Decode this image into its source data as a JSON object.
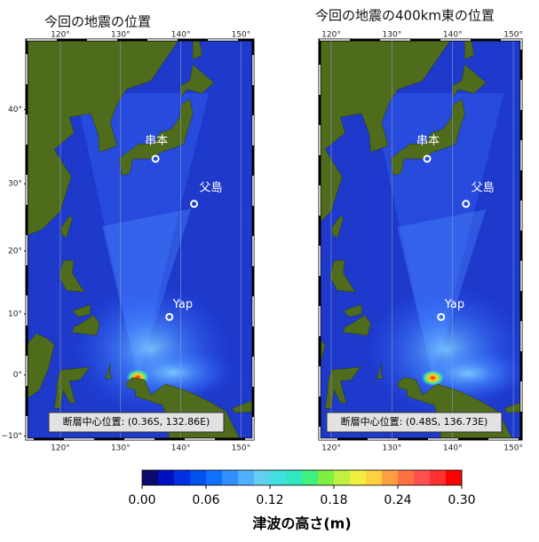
{
  "panels": [
    {
      "title": "今回の地震の位置",
      "extent": {
        "lon": [
          114.4,
          152
        ],
        "lat": [
          -10.5,
          48.2
        ]
      },
      "lon_ticks": [
        {
          "value": 120,
          "label": "120°"
        },
        {
          "value": 130,
          "label": "130°"
        },
        {
          "value": 140,
          "label": "140°"
        },
        {
          "value": 150,
          "label": "150°"
        }
      ],
      "lat_ticks": [
        {
          "value": 40,
          "label": "40°"
        },
        {
          "value": 30,
          "label": "30°"
        },
        {
          "value": 20,
          "label": "20°"
        },
        {
          "value": 10,
          "label": "10°"
        },
        {
          "value": 0,
          "label": "0°"
        },
        {
          "value": -10,
          "label": "−10°"
        }
      ],
      "stations": [
        "串本",
        "父島",
        "Yap"
      ],
      "fault_location": "断層中心位置: (0.36S, 132.86E)"
    },
    {
      "title": "今回の地震の400km東の位置",
      "extent": {
        "lon": [
          118.1,
          151.3
        ],
        "lat": [
          -10.5,
          48.2
        ]
      },
      "lon_ticks": [
        {
          "value": 120,
          "label": "120°"
        },
        {
          "value": 130,
          "label": "130°"
        },
        {
          "value": 140,
          "label": "140°"
        },
        {
          "value": 150,
          "label": "150°"
        }
      ],
      "lat_ticks": [],
      "stations": [
        "串本",
        "父島",
        "Yap"
      ],
      "fault_location": "断層中心位置: (0.48S, 136.73E)"
    }
  ],
  "colorbar": {
    "label": "津波の高さ(m)",
    "range": [
      0,
      0.3
    ],
    "ticks": [
      {
        "value": 0,
        "label": "0.00"
      },
      {
        "value": 0.06,
        "label": "0.06"
      },
      {
        "value": 0.12,
        "label": "0.12"
      },
      {
        "value": 0.18,
        "label": "0.18"
      },
      {
        "value": 0.24,
        "label": "0.24"
      },
      {
        "value": 0.3,
        "label": "0.30"
      }
    ],
    "colors": [
      "#0a0a6e",
      "#0010c0",
      "#0030e0",
      "#0050f0",
      "#1070ff",
      "#3090ff",
      "#50b0ff",
      "#60d0f0",
      "#40e0e0",
      "#30e8c0",
      "#40f080",
      "#80f040",
      "#c0f040",
      "#f0f040",
      "#ffd040",
      "#ffa040",
      "#ff7040",
      "#ff5050",
      "#ff3030",
      "#ff0000"
    ]
  }
}
